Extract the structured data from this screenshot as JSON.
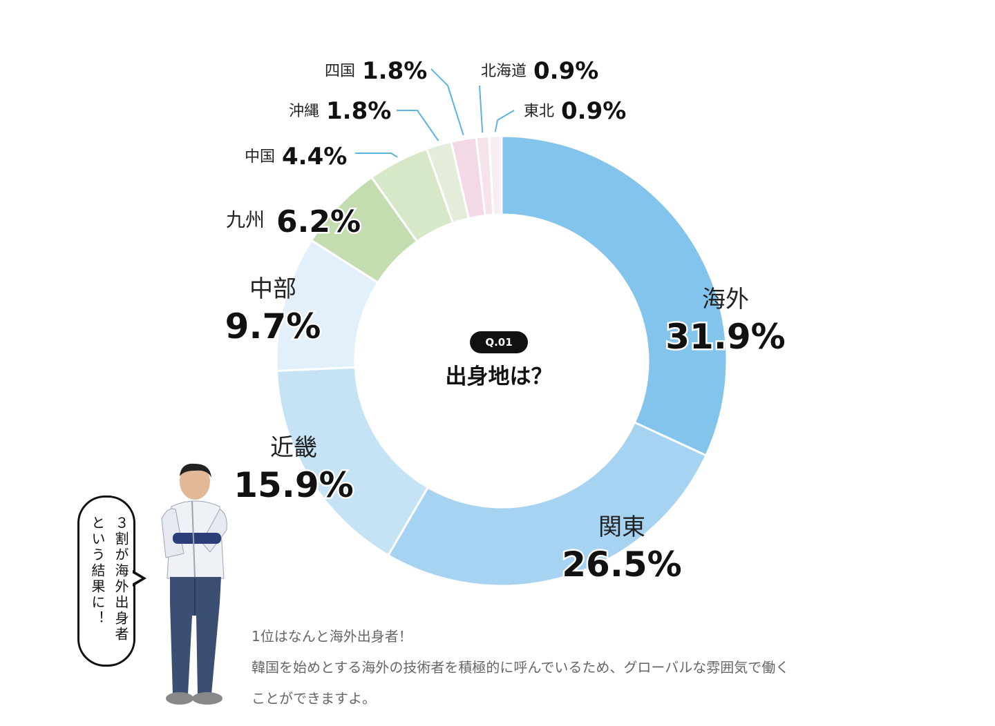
{
  "chart_data": {
    "type": "pie",
    "variant": "donut",
    "segments": [
      {
        "name": "海外",
        "value": 31.9,
        "value_label": "31.9%",
        "color": "#82c4ec"
      },
      {
        "name": "関東",
        "value": 26.5,
        "value_label": "26.5%",
        "color": "#a6d3f2"
      },
      {
        "name": "近畿",
        "value": 15.9,
        "value_label": "15.9%",
        "color": "#c6e3f6"
      },
      {
        "name": "中部",
        "value": 9.7,
        "value_label": "9.7%",
        "color": "#e1f0fb"
      },
      {
        "name": "九州",
        "value": 6.2,
        "value_label": "6.2%",
        "color": "#c3dcb0"
      },
      {
        "name": "中国",
        "value": 4.4,
        "value_label": "4.4%",
        "color": "#d7e8c8"
      },
      {
        "name": "沖縄",
        "value": 1.8,
        "value_label": "1.8%",
        "color": "#e3edda"
      },
      {
        "name": "四国",
        "value": 1.8,
        "value_label": "1.8%",
        "color": "#f3d8e5"
      },
      {
        "name": "北海道",
        "value": 0.9,
        "value_label": "0.9%",
        "color": "#f6e2eb"
      },
      {
        "name": "東北",
        "value": 0.9,
        "value_label": "0.9%",
        "color": "#f9ecf2"
      }
    ],
    "leader_line_color": "#5ab4e0"
  },
  "center": {
    "badge": "Q.01",
    "title": "出身地は？"
  },
  "speech_bubble": {
    "line1": "３割が海外出身者",
    "line2": "という結果に！"
  },
  "comment": {
    "line1": "1位はなんと海外出身者！",
    "line2": "韓国を始めとする海外の技術者を積極的に呼んでいるため、グローバルな雰囲気で働く",
    "line3": "ことができますよ。"
  }
}
